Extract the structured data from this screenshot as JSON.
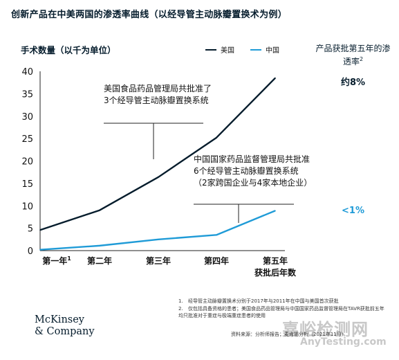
{
  "title": "创新产品在中美两国的渗透率曲线（以经导管主动脉瓣置换术为例）",
  "legend": {
    "us": "美国",
    "cn": "中国"
  },
  "colors": {
    "us": "#051c2c",
    "cn": "#1f9bd7",
    "axis": "#222222"
  },
  "side_panel": {
    "heading": "产品获批第五年的渗透率",
    "heading_sup": "2",
    "us_value": "约8%",
    "cn_value": "<1%"
  },
  "annotations": {
    "us": "美国食品药品管理局共批准了3个经导管主动脉瓣置换系统",
    "cn": "中国国家药品监督管理局共批准6个经导管主动脉瓣置换系统（2家跨国企业与4家本地企业）"
  },
  "chart_data": {
    "type": "line",
    "ylabel": "手术数量（以千为单位）",
    "xlabel": "获批后年数",
    "categories": [
      "第一年",
      "第二年",
      "第三年",
      "第四年",
      "第五年"
    ],
    "category_sup": [
      "1",
      "",
      "",
      "",
      ""
    ],
    "ylim": [
      0,
      40
    ],
    "yticks": [
      0,
      5,
      10,
      15,
      20,
      25,
      30,
      35,
      40
    ],
    "grid": false,
    "series": [
      {
        "name": "美国",
        "key": "us",
        "values": [
          4.6,
          9.0,
          16.4,
          25.2,
          38.5
        ]
      },
      {
        "name": "中国",
        "key": "cn",
        "values": [
          0.2,
          1.1,
          2.5,
          3.5,
          8.9
        ]
      }
    ]
  },
  "footnotes": [
    {
      "num": "1.",
      "text": "经导管主动脉瓣置换术分别于2017年与2011年在中国与美国首次获批"
    },
    {
      "num": "2.",
      "text": "仅包括具备资格的患者；美国食品药品管理局与中国国家药品监督管理局在TAVR获批前五年均只批准对于重症与极端重症患者的使用"
    }
  ],
  "source": "资料来源：分析师报告；麦肯锡分析（2021年11月）",
  "logo": {
    "line1": "McKinsey",
    "line2": "& Company"
  },
  "watermark": {
    "line1": "嘉峪检测网",
    "line2": "AnyTesting.com"
  }
}
